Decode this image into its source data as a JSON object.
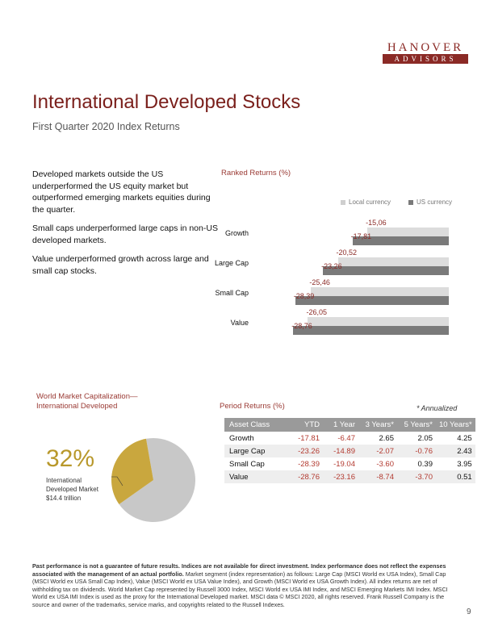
{
  "logo": {
    "top": "HANOVER",
    "bottom": "ADVISORS"
  },
  "header": {
    "title": "International Developed Stocks",
    "subtitle": "First Quarter 2020 Index Returns"
  },
  "commentary": [
    "Developed markets outside the US underperformed the US equity market but outperformed emerging markets equities during the quarter.",
    "Small caps underperformed large caps in non-US developed markets.",
    "Value underperformed growth across large and small cap stocks."
  ],
  "ranked": {
    "title": "Ranked Returns (%)",
    "legend": [
      "Local currency",
      "US currency"
    ],
    "colors": {
      "local": "#dcdcdc",
      "us": "#7a7a7a"
    }
  },
  "chart_data": {
    "type": "bar",
    "title": "Ranked Returns (%)",
    "categories": [
      "Growth",
      "Large Cap",
      "Small Cap",
      "Value"
    ],
    "series": [
      {
        "name": "Local currency",
        "values": [
          -15.06,
          -20.52,
          -25.46,
          -26.05
        ],
        "labels": [
          "-15,06",
          "-20,52",
          "-25,46",
          "-26,05"
        ]
      },
      {
        "name": "US currency",
        "values": [
          -17.81,
          -23.26,
          -28.39,
          -28.76
        ],
        "labels": [
          "-17,81",
          "-23,26",
          "-28,39",
          "-28,76"
        ]
      }
    ],
    "xlim": [
      -30,
      0
    ]
  },
  "capitalization": {
    "title_line1": "World Market Capitalization—",
    "title_line2": "International Developed",
    "percent": "32%",
    "fraction": 0.32,
    "label_line1": "International",
    "label_line2": "Developed Market",
    "label_line3": "$14.4 trillion",
    "colors": {
      "slice": "#c9a73e",
      "rest": "#c8c8c8"
    }
  },
  "period": {
    "title": "Period Returns (%)",
    "note": "* Annualized",
    "headers": [
      "Asset Class",
      "YTD",
      "1 Year",
      "3 Years*",
      "5 Years*",
      "10 Years*"
    ],
    "rows": [
      [
        "Growth",
        "-17.81",
        "-6.47",
        "2.65",
        "2.05",
        "4.25"
      ],
      [
        "Large Cap",
        "-23.26",
        "-14.89",
        "-2.07",
        "-0.76",
        "2.43"
      ],
      [
        "Small Cap",
        "-28.39",
        "-19.04",
        "-3.60",
        "0.39",
        "3.95"
      ],
      [
        "Value",
        "-28.76",
        "-23.16",
        "-8.74",
        "-3.70",
        "0.51"
      ]
    ]
  },
  "footnote": {
    "bold": "Past performance is not a guarantee of future results. Indices are not available for direct investment. Index performance does not reflect the expenses associated with the management of an actual portfolio.",
    "text": " Market segment (index representation) as follows: Large Cap (MSCI World ex USA Index), Small Cap (MSCI World ex USA Small Cap Index), Value (MSCI World ex USA Value Index), and Growth (MSCI World ex USA Growth Index). All index returns are net of withholding tax on dividends. World Market Cap represented by Russell 3000 Index, MSCI World ex USA IMI Index, and MSCI Emerging Markets IMI Index. MSCI World ex USA IMI Index is used as the proxy for the International Developed market. MSCI data © MSCI 2020, all rights reserved. Frank Russell Company is the source and owner of the trademarks, service marks, and copyrights related to the Russell Indexes."
  },
  "page_number": "9"
}
